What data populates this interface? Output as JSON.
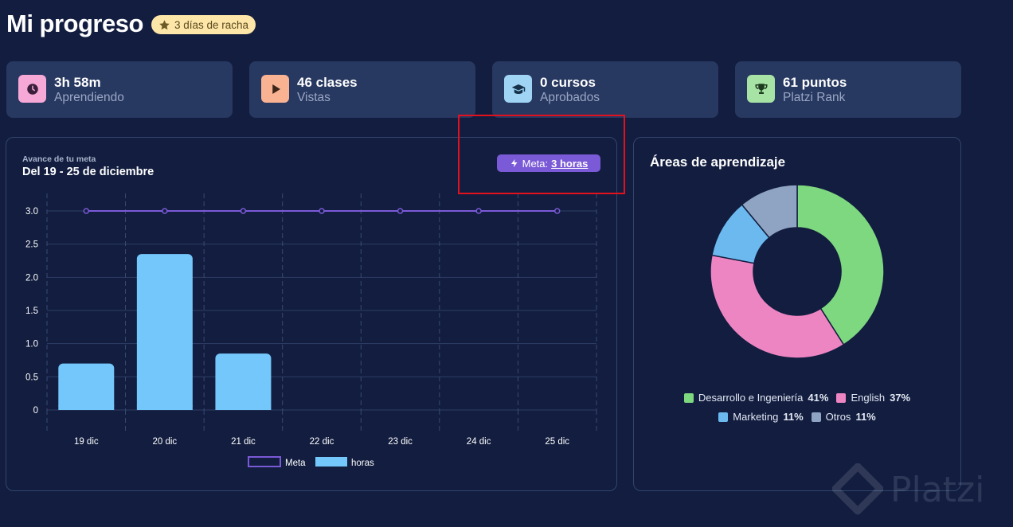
{
  "header": {
    "title": "Mi progreso",
    "streak": "3 días de racha"
  },
  "stats": [
    {
      "value": "3h 58m",
      "label": "Aprendiendo",
      "icon": "clock-icon",
      "color": "#f6a8d6"
    },
    {
      "value": "46 clases",
      "label": "Vistas",
      "icon": "play-icon",
      "color": "#f9b392"
    },
    {
      "value": "0 cursos",
      "label": "Aprobados",
      "icon": "graduation-cap-icon",
      "color": "#9fd4f5"
    },
    {
      "value": "61 puntos",
      "label": "Platzi Rank",
      "icon": "trophy-icon",
      "color": "#a6e3a4"
    }
  ],
  "goal_panel": {
    "subtitle": "Avance de tu meta",
    "range": "Del 19 - 25 de diciembre",
    "goal_label": "Meta:",
    "goal_value": "3 horas"
  },
  "chart_data": {
    "type": "bar",
    "categories": [
      "19 dic",
      "20 dic",
      "21 dic",
      "22 dic",
      "23 dic",
      "24 dic",
      "25 dic"
    ],
    "series": [
      {
        "name": "Meta",
        "type": "line",
        "color": "#7b5ad8",
        "values": [
          3,
          3,
          3,
          3,
          3,
          3,
          3
        ]
      },
      {
        "name": "horas",
        "type": "bar",
        "color": "#74c7fb",
        "values": [
          0.7,
          2.35,
          0.85,
          0,
          0,
          0,
          0
        ]
      }
    ],
    "yticks": [
      "0",
      "0.5",
      "1.0",
      "1.5",
      "2.0",
      "2.5",
      "3.0"
    ],
    "ylim": [
      0,
      3
    ],
    "grid": true,
    "legend": "bottom"
  },
  "areas_panel": {
    "title": "Áreas de aprendizaje",
    "chart_data": {
      "type": "pie",
      "slices": [
        {
          "label": "Desarrollo e Ingeniería",
          "pct_label": "41%",
          "value": 41,
          "color": "#7dd87f"
        },
        {
          "label": "English",
          "pct_label": "37%",
          "value": 37,
          "color": "#ee85c3"
        },
        {
          "label": "Marketing",
          "pct_label": "11%",
          "value": 11,
          "color": "#6bb9ef"
        },
        {
          "label": "Otros",
          "pct_label": "11%",
          "value": 11,
          "color": "#8fa3c2"
        }
      ]
    }
  },
  "watermark": "Platzi"
}
